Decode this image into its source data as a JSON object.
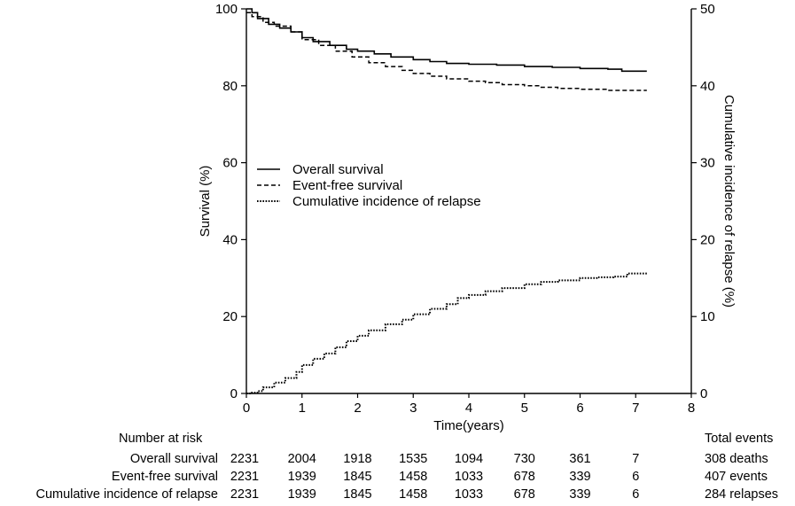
{
  "chart_data": {
    "type": "line",
    "xlabel": "Time(years)",
    "ylabel": "Survival (%)",
    "y2label": "Cumulative incidence of relapse (%)",
    "xlim": [
      0,
      8
    ],
    "ylim": [
      0,
      100
    ],
    "y2lim": [
      0,
      50
    ],
    "xticks": [
      "0",
      "1",
      "2",
      "3",
      "4",
      "5",
      "6",
      "7",
      "8"
    ],
    "yticks": [
      "0",
      "20",
      "40",
      "60",
      "80",
      "100"
    ],
    "y2ticks": [
      "0",
      "10",
      "20",
      "30",
      "40",
      "50"
    ],
    "grid": false,
    "legend_position": "center-left",
    "series": [
      {
        "name": "Overall survival",
        "axis": "left",
        "style": "solid",
        "points": [
          [
            0,
            100
          ],
          [
            0.1,
            99
          ],
          [
            0.2,
            97.5
          ],
          [
            0.4,
            96
          ],
          [
            0.6,
            95
          ],
          [
            0.8,
            94
          ],
          [
            1.0,
            92.5
          ],
          [
            1.2,
            91.5
          ],
          [
            1.5,
            90.5
          ],
          [
            1.8,
            89.5
          ],
          [
            2.0,
            89
          ],
          [
            2.3,
            88.3
          ],
          [
            2.6,
            87.5
          ],
          [
            3.0,
            86.8
          ],
          [
            3.3,
            86.3
          ],
          [
            3.6,
            85.8
          ],
          [
            4.0,
            85.6
          ],
          [
            4.5,
            85.4
          ],
          [
            5.0,
            85.0
          ],
          [
            5.5,
            84.8
          ],
          [
            6.0,
            84.5
          ],
          [
            6.5,
            84.3
          ],
          [
            6.75,
            84.2
          ],
          [
            6.75,
            83.8
          ],
          [
            7.2,
            83.8
          ]
        ]
      },
      {
        "name": "Event-free survival",
        "axis": "left",
        "style": "dashed",
        "points": [
          [
            0,
            99
          ],
          [
            0.1,
            98
          ],
          [
            0.3,
            96.5
          ],
          [
            0.5,
            95.5
          ],
          [
            0.8,
            94
          ],
          [
            1.0,
            92
          ],
          [
            1.3,
            90.5
          ],
          [
            1.6,
            89
          ],
          [
            1.9,
            87.5
          ],
          [
            2.2,
            86
          ],
          [
            2.5,
            85
          ],
          [
            2.8,
            84
          ],
          [
            3.0,
            83.2
          ],
          [
            3.3,
            82.5
          ],
          [
            3.6,
            81.8
          ],
          [
            4.0,
            81.2
          ],
          [
            4.3,
            80.8
          ],
          [
            4.6,
            80.3
          ],
          [
            5.0,
            80.0
          ],
          [
            5.3,
            79.6
          ],
          [
            5.6,
            79.3
          ],
          [
            6.0,
            79.1
          ],
          [
            6.5,
            78.8
          ],
          [
            7.2,
            78.8
          ]
        ]
      },
      {
        "name": "Cumulative incidence of relapse",
        "axis": "right",
        "style": "dotted",
        "points": [
          [
            0,
            0
          ],
          [
            0.1,
            0.1
          ],
          [
            0.2,
            0.3
          ],
          [
            0.3,
            0.8
          ],
          [
            0.5,
            1.4
          ],
          [
            0.7,
            2.0
          ],
          [
            0.9,
            2.8
          ],
          [
            1.0,
            3.7
          ],
          [
            1.2,
            4.5
          ],
          [
            1.4,
            5.2
          ],
          [
            1.6,
            6.0
          ],
          [
            1.8,
            6.8
          ],
          [
            2.0,
            7.5
          ],
          [
            2.2,
            8.2
          ],
          [
            2.5,
            9.0
          ],
          [
            2.8,
            9.6
          ],
          [
            3.0,
            10.3
          ],
          [
            3.3,
            11.0
          ],
          [
            3.6,
            11.6
          ],
          [
            3.8,
            12.4
          ],
          [
            4.0,
            12.8
          ],
          [
            4.3,
            13.3
          ],
          [
            4.6,
            13.7
          ],
          [
            5.0,
            14.2
          ],
          [
            5.3,
            14.5
          ],
          [
            5.6,
            14.7
          ],
          [
            6.0,
            15.0
          ],
          [
            6.3,
            15.1
          ],
          [
            6.6,
            15.2
          ],
          [
            6.8,
            15.2
          ],
          [
            6.85,
            15.6
          ],
          [
            7.2,
            15.7
          ]
        ]
      }
    ],
    "risk_table": {
      "header": "Number at risk",
      "times": [
        0,
        1,
        2,
        3,
        4,
        5,
        6,
        7
      ],
      "rows": [
        {
          "label": "Overall survival",
          "values": [
            "2231",
            "2004",
            "1918",
            "1535",
            "1094",
            "730",
            "361",
            "7"
          ]
        },
        {
          "label": "Event-free survival",
          "values": [
            "2231",
            "1939",
            "1845",
            "1458",
            "1033",
            "678",
            "339",
            "6"
          ]
        },
        {
          "label": "Cumulative incidence of relapse",
          "values": [
            "2231",
            "1939",
            "1845",
            "1458",
            "1033",
            "678",
            "339",
            "6"
          ]
        }
      ]
    },
    "totals": {
      "header": "Total events",
      "values": [
        "308 deaths",
        "407 events",
        "284 relapses"
      ]
    }
  }
}
